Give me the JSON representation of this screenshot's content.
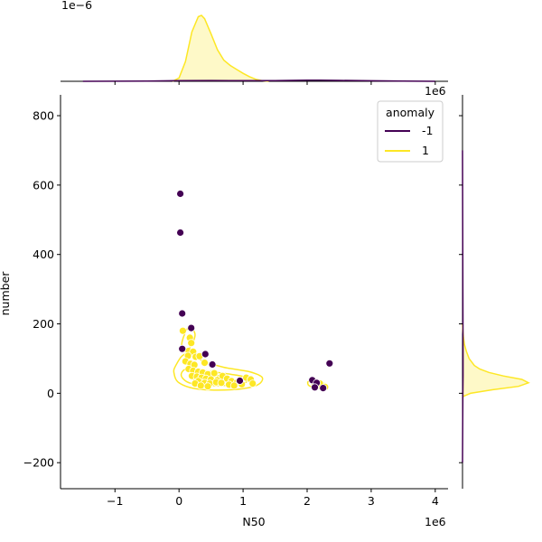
{
  "chart_data": {
    "type": "scatter",
    "xlabel": "N50",
    "ylabel": "number",
    "x_offset_label": "1e6",
    "top_marginal_offset_label": "1e−6",
    "right_marginal_offset_label": "1e6",
    "xlim": [
      -1.85,
      4.2
    ],
    "ylim": [
      -275,
      860
    ],
    "xticks": [
      "−1",
      "0",
      "1",
      "2",
      "3",
      "4"
    ],
    "yticks": [
      "−200",
      "0",
      "200",
      "400",
      "600",
      "800"
    ],
    "legend": {
      "title": "anomaly",
      "position": "upper right",
      "entries": [
        {
          "label": "-1",
          "color": "#440154"
        },
        {
          "label": "1",
          "color": "#fde725"
        }
      ]
    },
    "series": [
      {
        "name": "-1",
        "color": "#440154",
        "points": [
          [
            0.02,
            575
          ],
          [
            0.02,
            463
          ],
          [
            0.05,
            230
          ],
          [
            0.19,
            188
          ],
          [
            0.05,
            128
          ],
          [
            0.41,
            113
          ],
          [
            0.52,
            83
          ],
          [
            0.95,
            36
          ],
          [
            2.08,
            38
          ],
          [
            2.15,
            30
          ],
          [
            2.12,
            17
          ],
          [
            2.25,
            15
          ],
          [
            2.35,
            86
          ]
        ]
      },
      {
        "name": "1",
        "color": "#fde725",
        "points": [
          [
            0.06,
            180
          ],
          [
            0.17,
            160
          ],
          [
            0.19,
            145
          ],
          [
            0.15,
            122
          ],
          [
            0.22,
            120
          ],
          [
            0.14,
            108
          ],
          [
            0.26,
            105
          ],
          [
            0.32,
            107
          ],
          [
            0.1,
            92
          ],
          [
            0.18,
            85
          ],
          [
            0.24,
            82
          ],
          [
            0.4,
            88
          ],
          [
            0.15,
            70
          ],
          [
            0.22,
            65
          ],
          [
            0.3,
            62
          ],
          [
            0.37,
            60
          ],
          [
            0.45,
            55
          ],
          [
            0.55,
            58
          ],
          [
            0.2,
            50
          ],
          [
            0.28,
            48
          ],
          [
            0.35,
            45
          ],
          [
            0.42,
            42
          ],
          [
            0.5,
            40
          ],
          [
            0.6,
            38
          ],
          [
            0.68,
            50
          ],
          [
            0.75,
            42
          ],
          [
            0.82,
            35
          ],
          [
            0.9,
            30
          ],
          [
            0.98,
            26
          ],
          [
            1.05,
            45
          ],
          [
            1.12,
            40
          ],
          [
            1.15,
            28
          ],
          [
            0.3,
            35
          ],
          [
            0.4,
            30
          ],
          [
            0.48,
            28
          ],
          [
            0.58,
            32
          ],
          [
            0.66,
            30
          ],
          [
            0.78,
            25
          ],
          [
            0.86,
            22
          ],
          [
            0.25,
            28
          ],
          [
            0.34,
            22
          ],
          [
            0.45,
            20
          ],
          [
            2.12,
            25
          ],
          [
            2.18,
            22
          ],
          [
            2.22,
            20
          ],
          [
            2.28,
            18
          ],
          [
            2.2,
            28
          ]
        ]
      }
    ],
    "kde_contours": [
      {
        "series": "1",
        "color": "#fde725",
        "levels": [
          [
            [
              -0.08,
              60
            ],
            [
              -0.05,
              80
            ],
            [
              0.05,
              108
            ],
            [
              0.18,
              115
            ],
            [
              0.35,
              95
            ],
            [
              0.7,
              75
            ],
            [
              1.1,
              62
            ],
            [
              1.3,
              45
            ],
            [
              1.2,
              22
            ],
            [
              0.8,
              10
            ],
            [
              0.3,
              12
            ],
            [
              0.0,
              30
            ]
          ],
          [
            [
              0.05,
              62
            ],
            [
              0.15,
              72
            ],
            [
              0.4,
              65
            ],
            [
              0.8,
              55
            ],
            [
              1.05,
              45
            ],
            [
              1.0,
              28
            ],
            [
              0.6,
              22
            ],
            [
              0.2,
              28
            ],
            [
              0.05,
              45
            ]
          ],
          [
            [
              0.2,
              50
            ],
            [
              0.45,
              52
            ],
            [
              0.7,
              48
            ],
            [
              0.75,
              38
            ],
            [
              0.45,
              33
            ],
            [
              0.25,
              38
            ]
          ],
          [
            [
              2.02,
              34
            ],
            [
              2.15,
              33
            ],
            [
              2.3,
              26
            ],
            [
              2.3,
              18
            ],
            [
              2.15,
              16
            ],
            [
              2.03,
              22
            ]
          ],
          [
            [
              0.06,
              120
            ],
            [
              0.18,
              135
            ],
            [
              0.25,
              170
            ],
            [
              0.15,
              190
            ],
            [
              0.05,
              150
            ]
          ]
        ]
      }
    ],
    "marginal_x": {
      "series": [
        {
          "name": "1",
          "color": "#fde725",
          "x": [
            -0.1,
            0.0,
            0.1,
            0.2,
            0.3,
            0.35,
            0.4,
            0.5,
            0.6,
            0.7,
            0.8,
            0.9,
            1.0,
            1.1,
            1.2,
            1.3,
            1.4
          ],
          "density": [
            0.0,
            0.05,
            0.3,
            0.75,
            0.98,
            1.0,
            0.95,
            0.72,
            0.48,
            0.32,
            0.24,
            0.18,
            0.12,
            0.07,
            0.03,
            0.01,
            0.0
          ]
        },
        {
          "name": "-1",
          "color": "#440154",
          "x": [
            -1.5,
            -0.5,
            0.0,
            0.5,
            1.0,
            1.5,
            2.0,
            2.2,
            2.5,
            3.0,
            3.5,
            4.0
          ],
          "density": [
            0.0,
            0.004,
            0.01,
            0.012,
            0.01,
            0.011,
            0.016,
            0.018,
            0.014,
            0.008,
            0.003,
            0.0
          ]
        }
      ]
    },
    "marginal_y": {
      "series": [
        {
          "name": "1",
          "color": "#fde725",
          "y": [
            -10,
            0,
            10,
            20,
            30,
            40,
            50,
            60,
            70,
            80,
            100,
            120,
            140,
            160,
            180,
            200
          ],
          "density": [
            0.0,
            0.12,
            0.45,
            0.85,
            1.0,
            0.9,
            0.62,
            0.4,
            0.26,
            0.18,
            0.1,
            0.06,
            0.03,
            0.015,
            0.005,
            0.0
          ]
        },
        {
          "name": "-1",
          "color": "#440154",
          "y": [
            -200,
            -100,
            0,
            50,
            100,
            200,
            300,
            400,
            500,
            600,
            700
          ],
          "density": [
            0.0,
            0.003,
            0.006,
            0.008,
            0.008,
            0.007,
            0.005,
            0.004,
            0.003,
            0.002,
            0.0
          ]
        }
      ]
    }
  }
}
